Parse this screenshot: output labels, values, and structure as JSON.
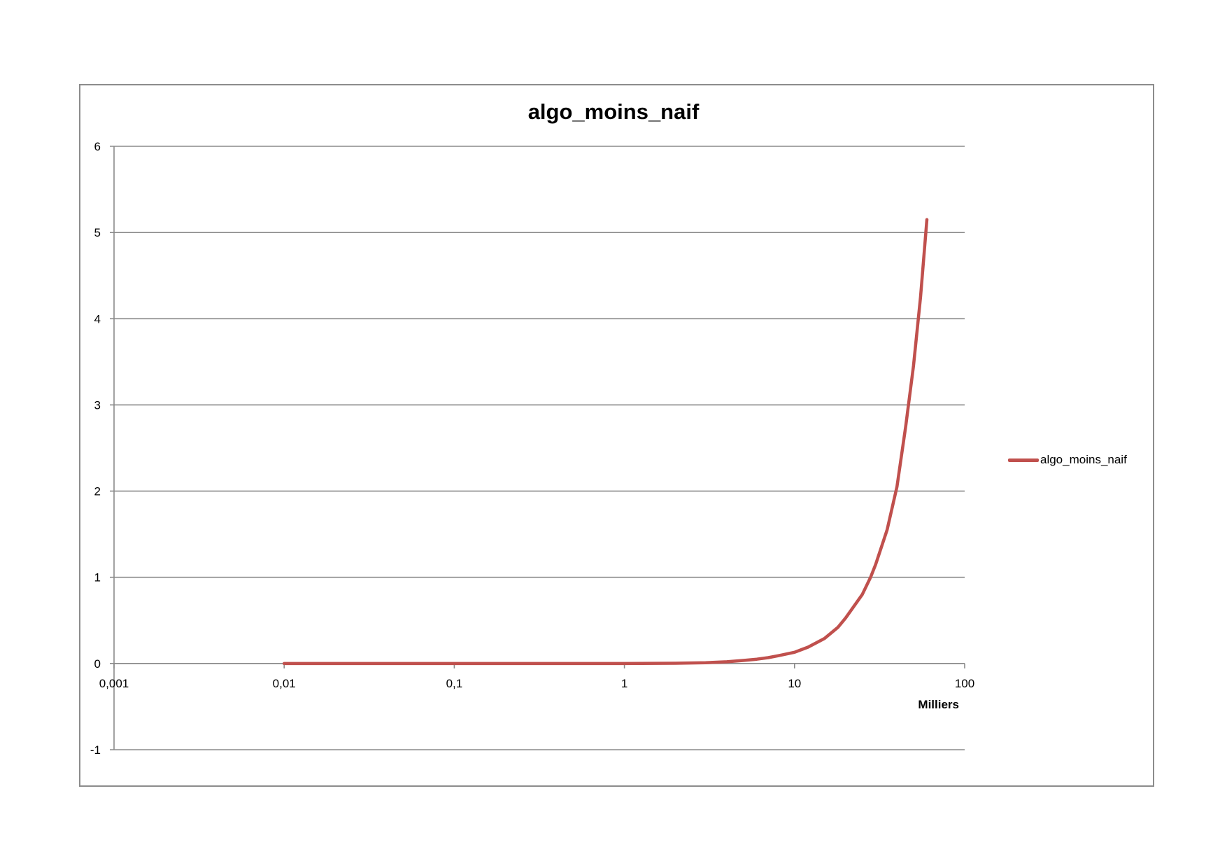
{
  "chart_data": {
    "type": "line",
    "title": "algo_moins_naif",
    "xlabel": "Milliers",
    "ylabel": "",
    "x_scale": "log",
    "xlim": [
      0.001,
      100
    ],
    "ylim": [
      -1,
      6
    ],
    "x_ticks": [
      "0,001",
      "0,01",
      "0,1",
      "1",
      "10",
      "100"
    ],
    "y_ticks": [
      "6",
      "5",
      "4",
      "3",
      "2",
      "1",
      "0",
      "-1"
    ],
    "grid": "horizontal",
    "legend_position": "right",
    "series": [
      {
        "name": "algo_moins_naif",
        "color": "#c0504d",
        "x": [
          0.01,
          0.1,
          0.4,
          1,
          2,
          3,
          4,
          5,
          6,
          7,
          8,
          10,
          12,
          15,
          18,
          20,
          25,
          28,
          30,
          35,
          40,
          45,
          50,
          55,
          60
        ],
        "y": [
          0,
          0,
          0,
          0,
          0.003,
          0.009,
          0.02,
          0.035,
          0.05,
          0.068,
          0.09,
          0.13,
          0.19,
          0.29,
          0.42,
          0.53,
          0.8,
          1.0,
          1.15,
          1.55,
          2.05,
          2.75,
          3.45,
          4.25,
          5.15
        ]
      }
    ]
  }
}
